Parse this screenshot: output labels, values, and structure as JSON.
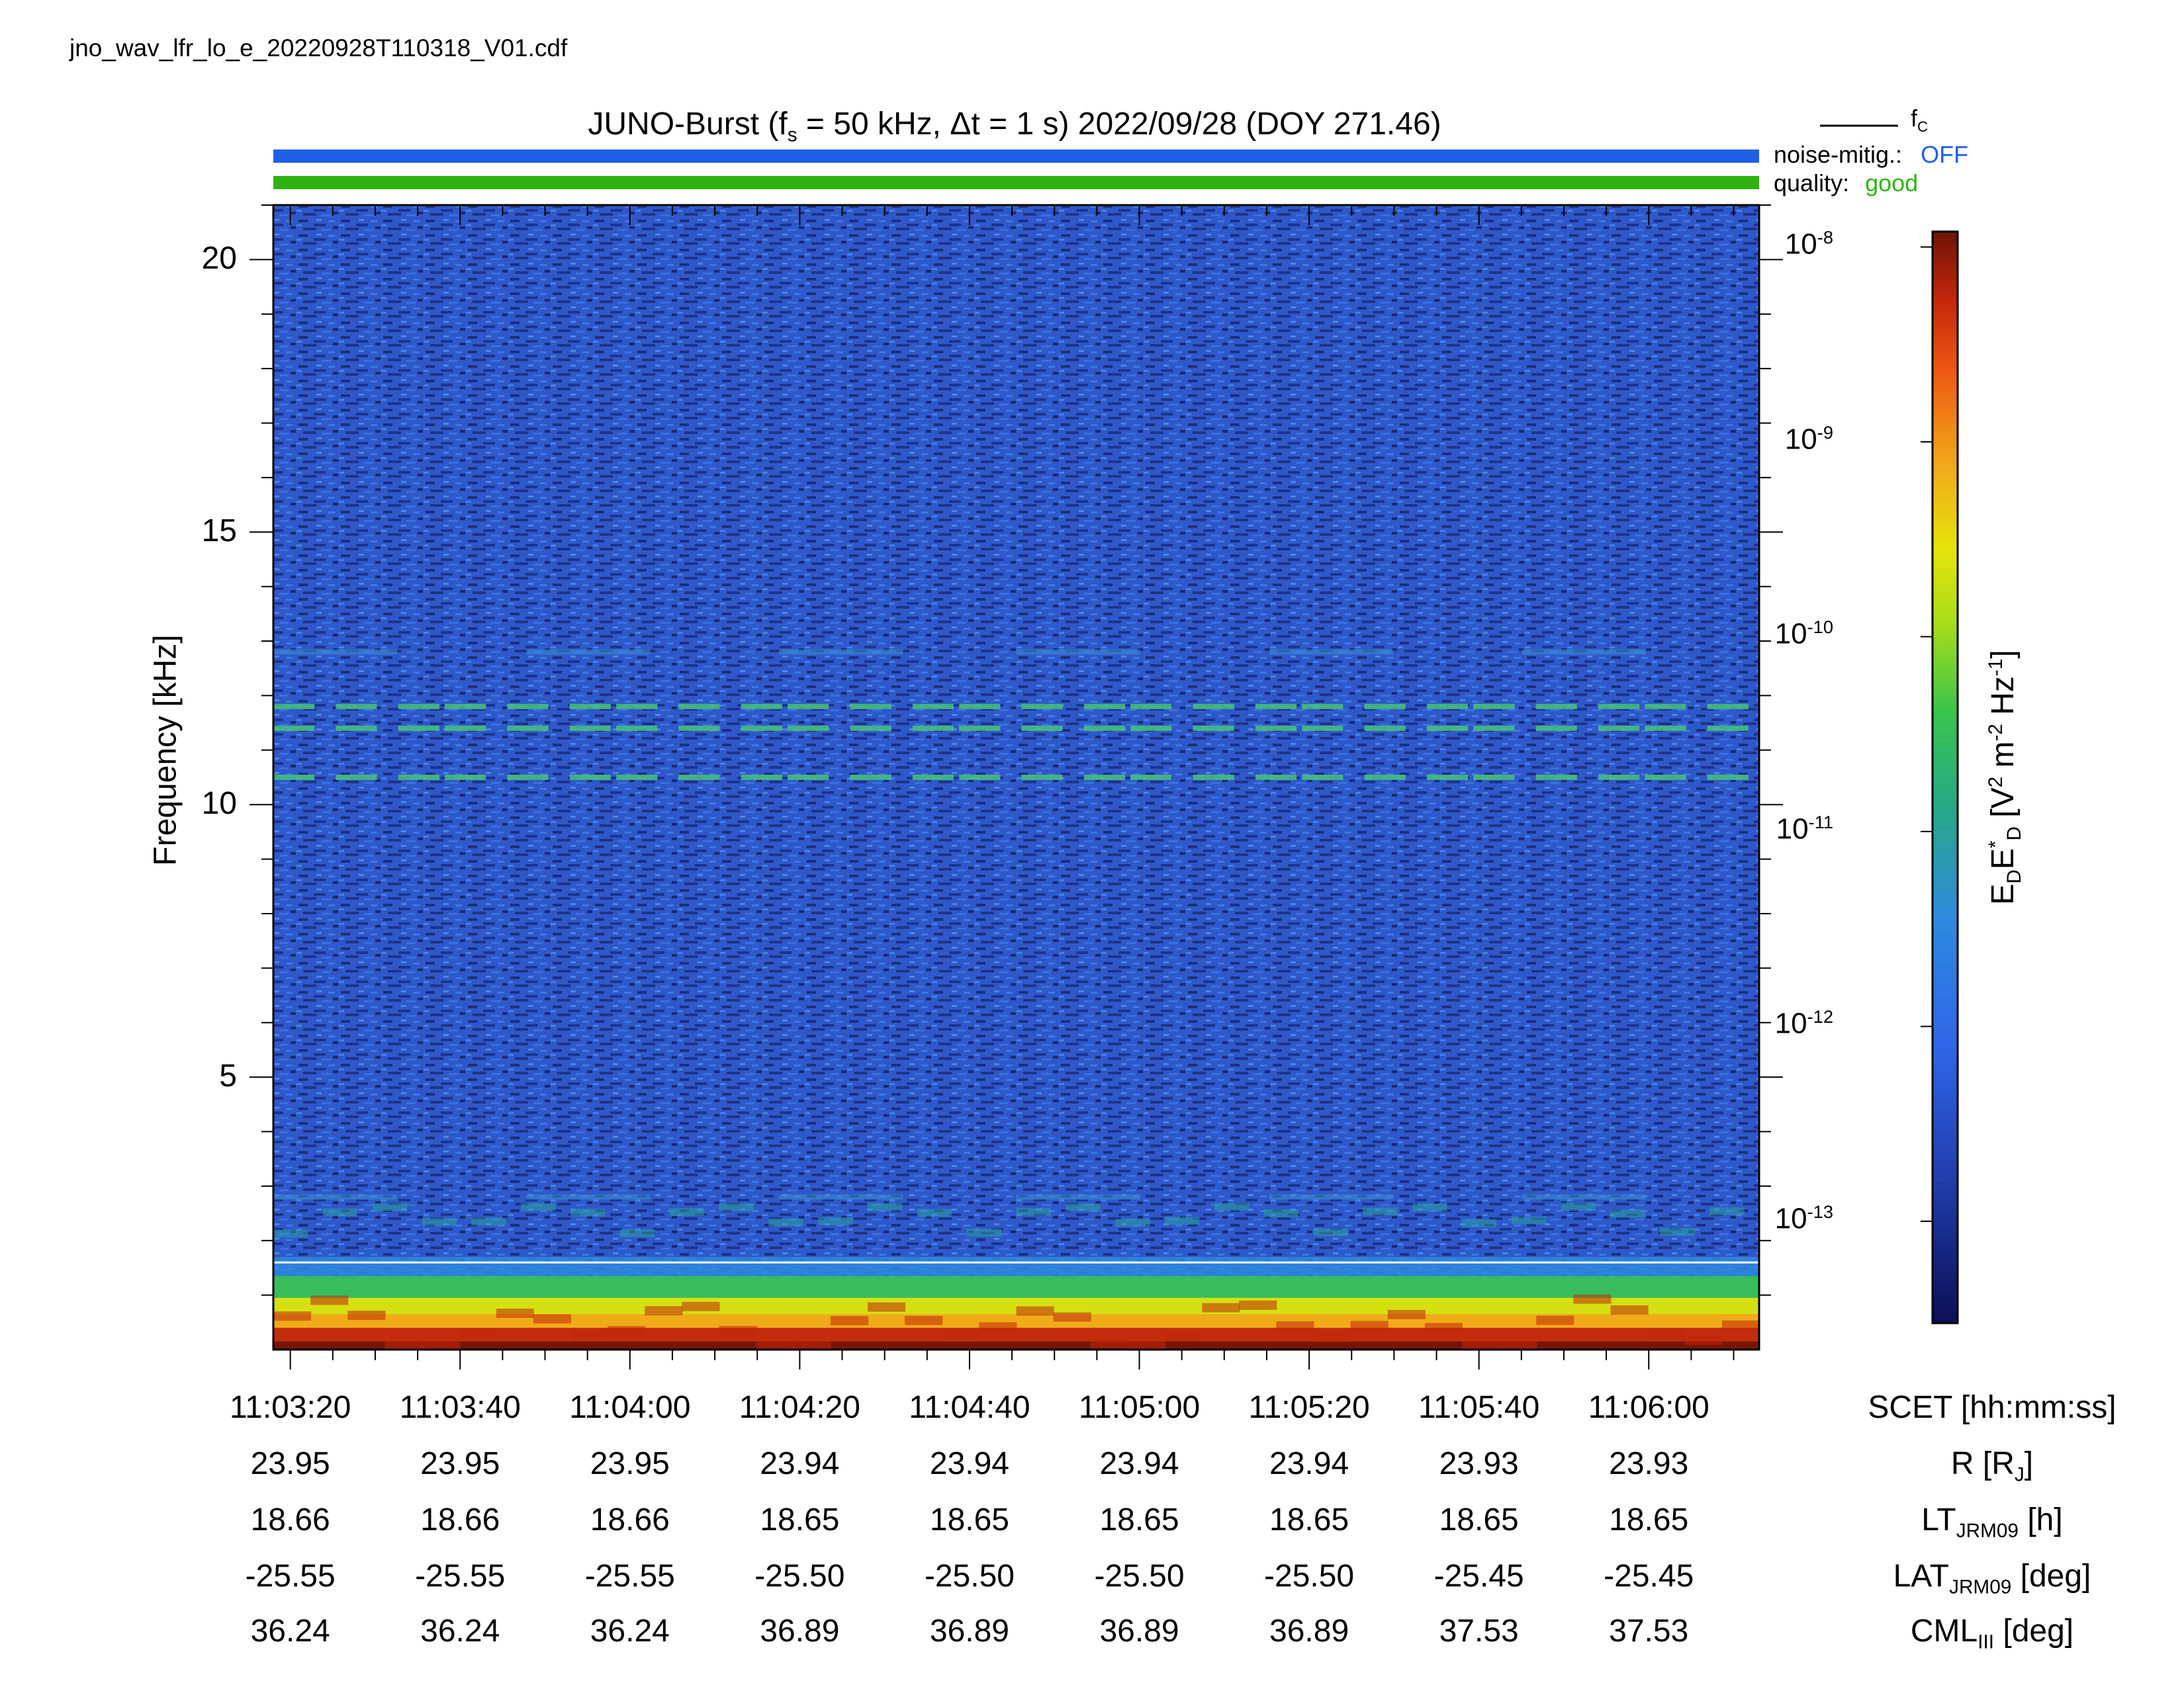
{
  "filename": "jno_wav_lfr_lo_e_20220928T110318_V01.cdf",
  "chart_data": {
    "type": "heatmap",
    "title": "JUNO-Burst (f_s = 50 kHz, Δt = 1 s)  2022/09/28 (DOY 271.46)",
    "title_parts": {
      "main": "JUNO-Burst (f",
      "sub": "s",
      "rest": " = 50 kHz, Δt = 1 s)  2022/09/28 (DOY 271.46)"
    },
    "ylabel": "Frequency [kHz]",
    "ylim": [
      0,
      21
    ],
    "y_ticks": [
      "5",
      "10",
      "15",
      "20"
    ],
    "x_time_range": [
      "11:03:18",
      "11:06:13"
    ],
    "x_ticks": [
      "11:03:20",
      "11:03:40",
      "11:04:00",
      "11:04:20",
      "11:04:40",
      "11:05:00",
      "11:05:20",
      "11:05:40",
      "11:06:00"
    ],
    "ephemeris_rows": [
      {
        "label_main": "SCET [hh:mm:ss]",
        "label_sub": "",
        "label_rest": ""
      },
      {
        "label_main": "R [R",
        "label_sub": "J",
        "label_rest": "]",
        "values": [
          "23.95",
          "23.95",
          "23.95",
          "23.94",
          "23.94",
          "23.94",
          "23.94",
          "23.93",
          "23.93"
        ]
      },
      {
        "label_main": "LT",
        "label_sub": "JRM09",
        "label_rest": " [h]",
        "values": [
          "18.66",
          "18.66",
          "18.66",
          "18.65",
          "18.65",
          "18.65",
          "18.65",
          "18.65",
          "18.65"
        ]
      },
      {
        "label_main": "LAT",
        "label_sub": "JRM09",
        "label_rest": " [deg]",
        "values": [
          "-25.55",
          "-25.55",
          "-25.55",
          "-25.50",
          "-25.50",
          "-25.50",
          "-25.50",
          "-25.45",
          "-25.45"
        ]
      },
      {
        "label_main": "CML",
        "label_sub": "III",
        "label_rest": " [deg]",
        "values": [
          "36.24",
          "36.24",
          "36.24",
          "36.89",
          "36.89",
          "36.89",
          "36.89",
          "37.53",
          "37.53"
        ]
      }
    ],
    "colorbar": {
      "label": "E_D E*_D [V² m⁻² Hz⁻¹]",
      "scale": "log",
      "range": [
        3e-14,
        1.2e-08
      ],
      "ticks": [
        {
          "base": "10",
          "exp": "-8"
        },
        {
          "base": "10",
          "exp": "-9"
        },
        {
          "base": "10",
          "exp": "-10"
        },
        {
          "base": "10",
          "exp": "-11"
        },
        {
          "base": "10",
          "exp": "-12"
        },
        {
          "base": "10",
          "exp": "-13"
        }
      ],
      "tick_values": [
        1e-08,
        1e-09,
        1e-10,
        1e-11,
        1e-12,
        1e-13
      ]
    },
    "fc_line_khz": 1.6,
    "features": [
      {
        "description_value_khz": 11.8,
        "kind": "narrowband emission"
      },
      {
        "description_value_khz": 11.4,
        "kind": "narrowband emission"
      },
      {
        "description_value_khz": 10.5,
        "kind": "narrowband emission"
      },
      {
        "description_value_khz": 12.8,
        "kind": "weak emission"
      },
      {
        "description_value_khz": 2.8,
        "kind": "weak emission"
      }
    ],
    "status": {
      "noise_label": "noise-mitig.:",
      "noise_value": "OFF",
      "noise_color": "#1f5fe6",
      "quality_label": "quality:",
      "quality_value": "good",
      "quality_color": "#2fb311"
    },
    "fc_legend": "f",
    "fc_legend_sub": "C"
  }
}
